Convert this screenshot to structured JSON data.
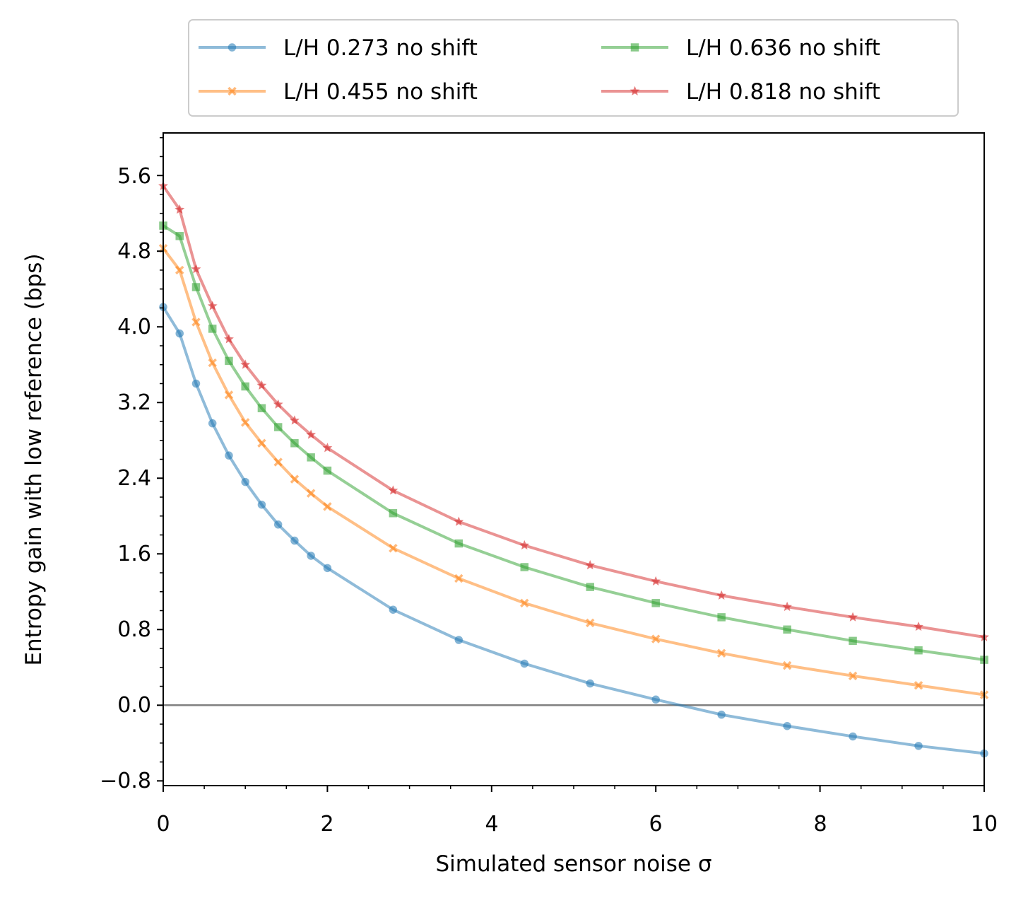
{
  "chart_data": {
    "type": "line",
    "xlabel": "Simulated sensor noise σ",
    "ylabel": "Entropy gain with low reference (bps)",
    "xlim": [
      0,
      10
    ],
    "ylim": [
      -0.85,
      6.05
    ],
    "x_ticks": [
      "0",
      "2",
      "4",
      "6",
      "8",
      "10"
    ],
    "y_ticks": [
      "−0.8",
      "0.0",
      "0.8",
      "1.6",
      "2.4",
      "3.2",
      "4.0",
      "4.8",
      "5.6"
    ],
    "grid": false,
    "reference_line_y": 0,
    "legend": {
      "location": "above plot, 2 columns"
    },
    "x": [
      0,
      0.2,
      0.4,
      0.6,
      0.8,
      1.0,
      1.2,
      1.4,
      1.6,
      1.8,
      2.0,
      2.8,
      3.6,
      4.4,
      5.2,
      6.0,
      6.8,
      7.6,
      8.4,
      9.2,
      10.0
    ],
    "series": [
      {
        "name": "L/H 0.273 no shift",
        "color": "#1f77b4",
        "marker": "circle",
        "values": [
          4.21,
          3.93,
          3.4,
          2.98,
          2.64,
          2.36,
          2.12,
          1.91,
          1.74,
          1.58,
          1.45,
          1.01,
          0.69,
          0.44,
          0.23,
          0.06,
          -0.1,
          -0.22,
          -0.33,
          -0.43,
          -0.51
        ]
      },
      {
        "name": "L/H 0.455 no shift",
        "color": "#ff7f0e",
        "marker": "x",
        "values": [
          4.83,
          4.6,
          4.05,
          3.62,
          3.28,
          2.99,
          2.77,
          2.57,
          2.39,
          2.24,
          2.1,
          1.66,
          1.34,
          1.08,
          0.87,
          0.7,
          0.55,
          0.42,
          0.31,
          0.21,
          0.11
        ]
      },
      {
        "name": "L/H 0.636 no shift",
        "color": "#2ca02c",
        "marker": "square",
        "values": [
          5.07,
          4.96,
          4.42,
          3.98,
          3.64,
          3.37,
          3.14,
          2.94,
          2.77,
          2.62,
          2.48,
          2.03,
          1.71,
          1.46,
          1.25,
          1.08,
          0.93,
          0.8,
          0.68,
          0.58,
          0.48
        ]
      },
      {
        "name": "L/H 0.818 no shift",
        "color": "#d62728",
        "marker": "star",
        "values": [
          5.49,
          5.24,
          4.61,
          4.22,
          3.87,
          3.6,
          3.38,
          3.18,
          3.01,
          2.86,
          2.72,
          2.27,
          1.94,
          1.69,
          1.48,
          1.31,
          1.16,
          1.04,
          0.93,
          0.83,
          0.72
        ]
      }
    ]
  }
}
